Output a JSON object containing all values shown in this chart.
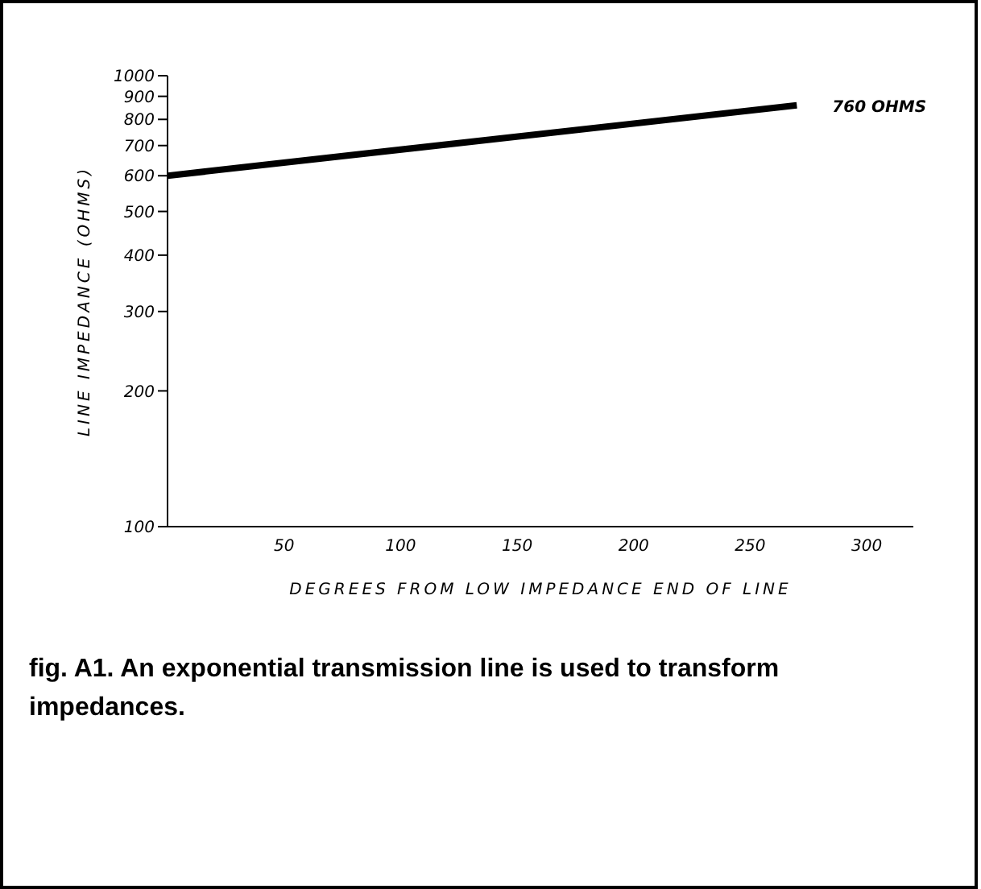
{
  "chart_data": {
    "type": "line",
    "xlabel": "DEGREES FROM LOW IMPEDANCE END OF LINE",
    "ylabel": "LINE IMPEDANCE (OHMS)",
    "x": [
      0,
      270
    ],
    "series": [
      {
        "color": "#000000",
        "values": [
          600,
          860
        ]
      }
    ],
    "xlim": [
      0,
      320
    ],
    "xticks": [
      50,
      100,
      150,
      200,
      250,
      300
    ],
    "ylim": [
      100,
      1000
    ],
    "yticks": [
      100,
      200,
      300,
      400,
      500,
      600,
      700,
      800,
      900,
      1000
    ],
    "log": "y",
    "grid": false,
    "marker": "none",
    "line_style": "solid",
    "annotations": [
      "760 OHMS",
      "fig. A1. An exponential transmission line is used to transform impedances."
    ]
  }
}
